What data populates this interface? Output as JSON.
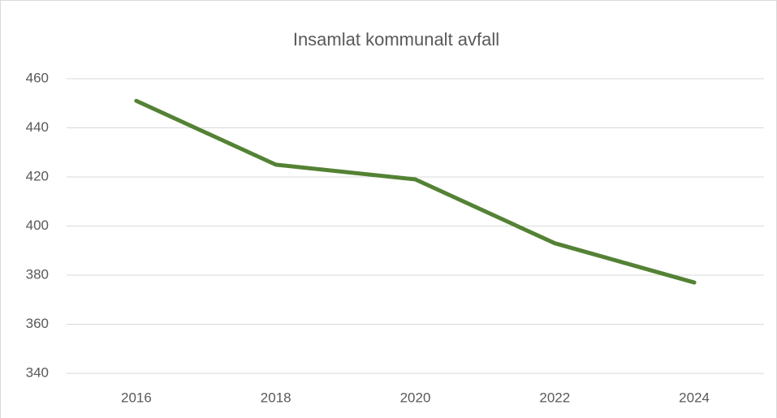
{
  "chart_data": {
    "type": "line",
    "title": "Insamlat kommunalt avfall",
    "categories": [
      "2016",
      "2018",
      "2020",
      "2022",
      "2024"
    ],
    "series": [
      {
        "name": "Insamlat kommunalt avfall",
        "color": "#548235",
        "values": [
          451,
          425,
          419,
          393,
          377
        ]
      }
    ],
    "ylim": [
      340,
      460
    ],
    "yticks": [
      340,
      360,
      380,
      400,
      420,
      440,
      460
    ],
    "grid": true
  }
}
